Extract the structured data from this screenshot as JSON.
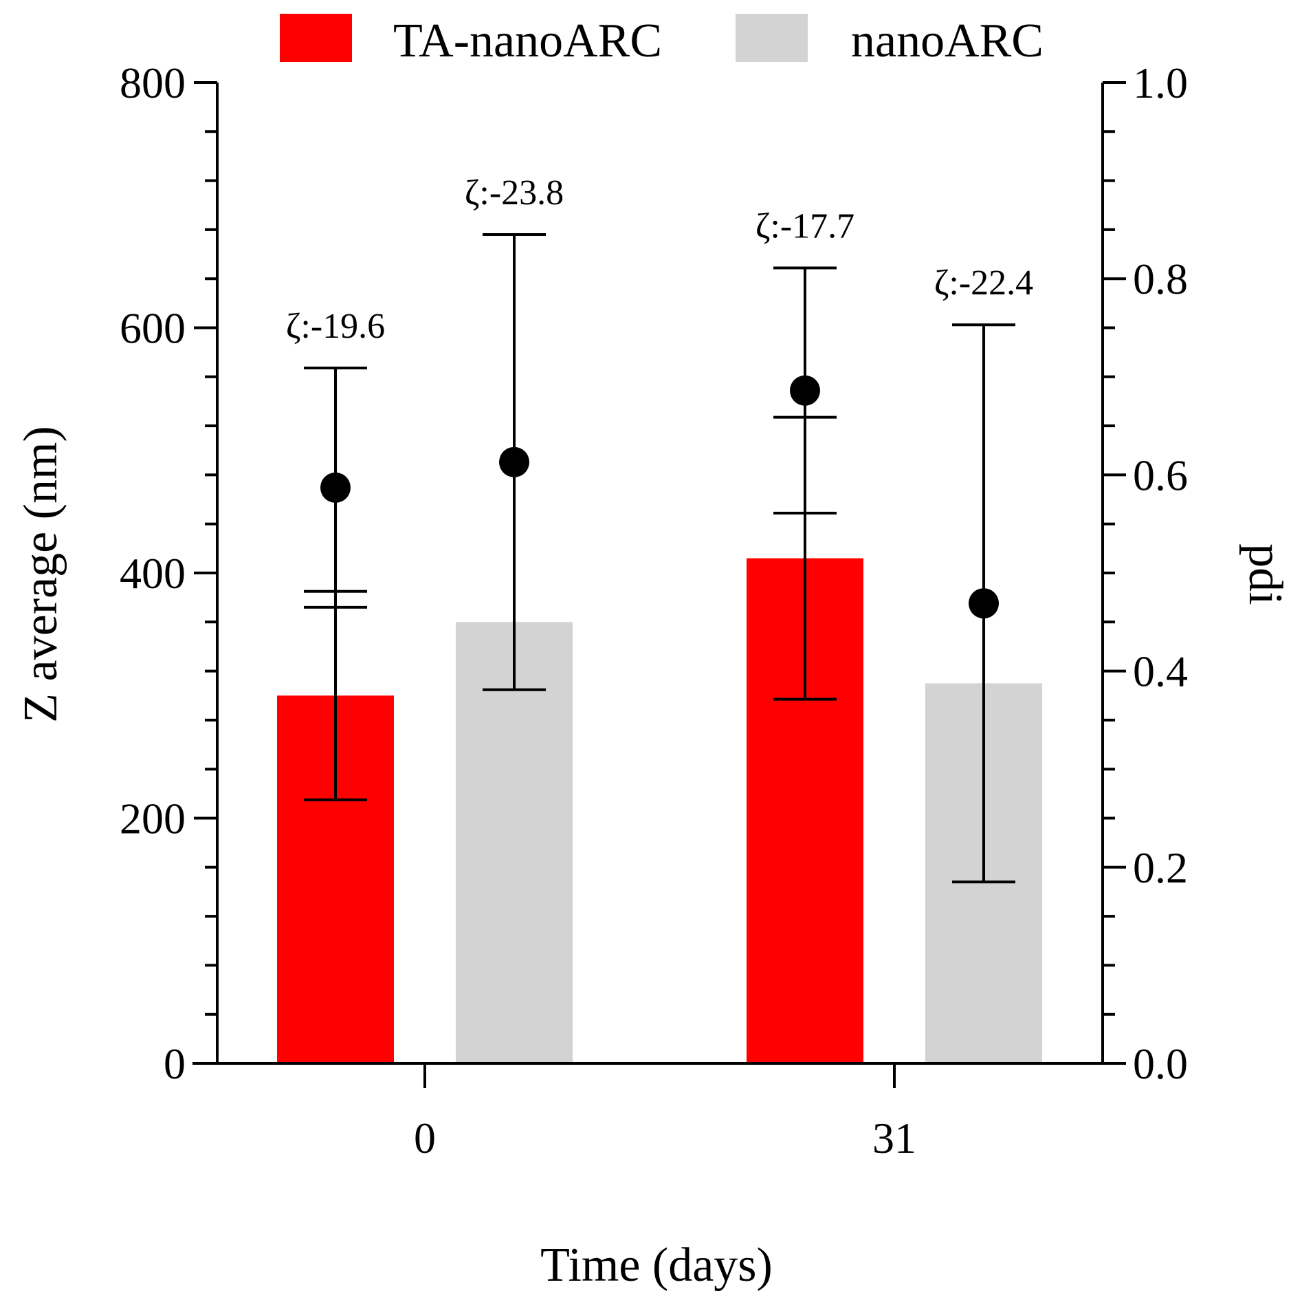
{
  "chart_data": {
    "type": "bar",
    "title": "",
    "xlabel": "Time (days)",
    "ylabel": "Z average (nm)",
    "y2label": "pdi",
    "categories": [
      "0",
      "31"
    ],
    "ylim": [
      0,
      800
    ],
    "y2lim": [
      0,
      1.0
    ],
    "yticks": [
      "0",
      "200",
      "400",
      "600",
      "800"
    ],
    "y2ticks": [
      "0.0",
      "0.2",
      "0.4",
      "0.6",
      "0.8",
      "1.0"
    ],
    "legend_position": "top",
    "series": [
      {
        "name": "TA-nanoARC",
        "color": "#ff0000",
        "values": [
          300,
          412
        ],
        "errors": [
          85,
          115
        ],
        "pdi": [
          0.587,
          0.686
        ],
        "pdi_err": [
          0.122,
          0.125
        ],
        "zeta_labels": [
          "ζ:-19.6",
          "ζ:-17.7"
        ]
      },
      {
        "name": "nanoARC",
        "color": "#d3d3d3",
        "values": [
          360,
          310
        ],
        "errors": [
          0,
          0
        ],
        "pdi": [
          0.613,
          0.469
        ],
        "pdi_err": [
          0.232,
          0.284
        ],
        "zeta_labels": [
          "ζ:-23.8",
          "ζ:-22.4"
        ]
      }
    ]
  }
}
